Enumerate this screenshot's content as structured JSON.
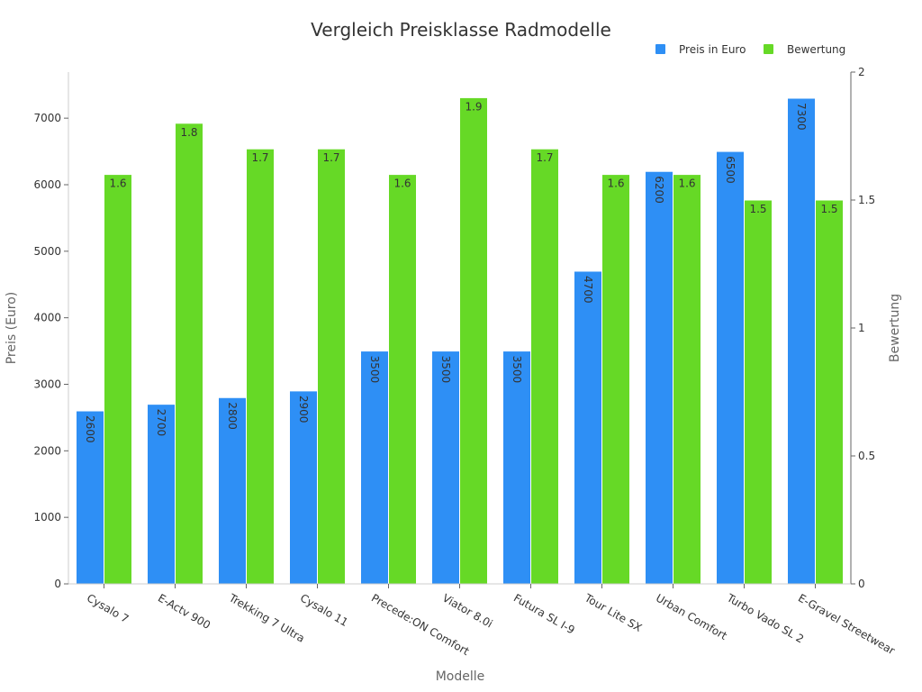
{
  "chart_data": {
    "type": "bar",
    "title": "Vergleich Preisklasse Radmodelle",
    "xlabel": "Modelle",
    "ylabel": "Preis (Euro)",
    "y2label": "Bewertung",
    "categories": [
      "Cysalo 7",
      "E-Actv 900",
      "Trekking 7 Ultra",
      "Cysalo 11",
      "Precede:ON Comfort",
      "Viator 8.0i",
      "Futura SL I-9",
      "Tour Lite SX",
      "Urban Comfort",
      "Turbo Vado SL 2",
      "E-Gravel Streetwear"
    ],
    "series": [
      {
        "name": "Preis in Euro",
        "axis": "left",
        "color": "#2e8ff5",
        "values": [
          2600,
          2700,
          2800,
          2900,
          3500,
          3500,
          3500,
          4700,
          6200,
          6500,
          7300
        ]
      },
      {
        "name": "Bewertung",
        "axis": "right",
        "color": "#66d926",
        "values": [
          1.6,
          1.8,
          1.7,
          1.7,
          1.6,
          1.9,
          1.7,
          1.6,
          1.6,
          1.5,
          1.5
        ]
      }
    ],
    "ylim": [
      0,
      7700
    ],
    "yticks": [
      0,
      1000,
      2000,
      3000,
      4000,
      5000,
      6000,
      7000
    ],
    "y2lim": [
      0,
      2
    ],
    "y2ticks": [
      0,
      0.5,
      1,
      1.5,
      2
    ],
    "y2ticklabels": [
      "0",
      "0.5",
      "1",
      "1.5",
      "2"
    ],
    "legend": "top-right"
  }
}
